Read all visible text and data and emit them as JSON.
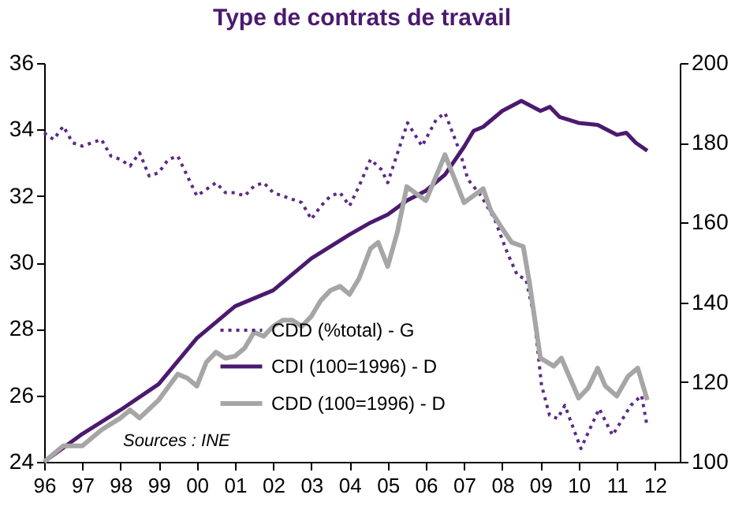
{
  "chart_data": {
    "type": "line",
    "title": "Type de contrats de travail",
    "xlim": [
      1996,
      2012.65
    ],
    "xticks": [
      {
        "value": 1996,
        "label": "96"
      },
      {
        "value": 1997,
        "label": "97"
      },
      {
        "value": 1998,
        "label": "98"
      },
      {
        "value": 1999,
        "label": "99"
      },
      {
        "value": 2000,
        "label": "00"
      },
      {
        "value": 2001,
        "label": "01"
      },
      {
        "value": 2002,
        "label": "02"
      },
      {
        "value": 2003,
        "label": "03"
      },
      {
        "value": 2004,
        "label": "04"
      },
      {
        "value": 2005,
        "label": "05"
      },
      {
        "value": 2006,
        "label": "06"
      },
      {
        "value": 2007,
        "label": "07"
      },
      {
        "value": 2008,
        "label": "08"
      },
      {
        "value": 2009,
        "label": "09"
      },
      {
        "value": 2010,
        "label": "10"
      },
      {
        "value": 2011,
        "label": "11"
      },
      {
        "value": 2012,
        "label": "12"
      }
    ],
    "ylim": [
      24,
      36
    ],
    "yticks": [
      24,
      26,
      28,
      30,
      32,
      34,
      36
    ],
    "y2lim": [
      100,
      200
    ],
    "y2ticks": [
      100,
      120,
      140,
      160,
      180,
      200
    ],
    "grid": false,
    "legend": "bottom",
    "marker": "none",
    "annotations": [
      "Sources : INE"
    ],
    "series": [
      {
        "name": "CDD (%total) - G",
        "color": "#5b2a86",
        "line_style": "dotted",
        "x": [
          1996,
          1996.25,
          1996.5,
          1996.75,
          1997,
          1997.25,
          1997.5,
          1997.75,
          1998,
          1998.25,
          1998.5,
          1998.75,
          1999,
          1999.25,
          1999.5,
          1999.75,
          2000,
          2000.25,
          2000.5,
          2000.75,
          2001,
          2001.25,
          2001.5,
          2001.75,
          2002,
          2002.25,
          2002.5,
          2002.75,
          2003,
          2003.25,
          2003.5,
          2003.75,
          2004,
          2004.25,
          2004.55,
          2004.83,
          2005,
          2005.52,
          2005.9,
          2006.27,
          2006.5,
          2006.9,
          2007.1,
          2007.45,
          2007.8,
          2008.13,
          2008.4,
          2008.62,
          2008.83,
          2009.03,
          2009.24,
          2009.45,
          2009.64,
          2010.06,
          2010.54,
          2010.89,
          2011.37,
          2011.65,
          2011.79
        ],
        "values": [
          33.9,
          33.7,
          34.1,
          33.6,
          33.5,
          33.6,
          33.7,
          33.2,
          33.1,
          32.9,
          33.3,
          32.6,
          32.7,
          33.1,
          33.2,
          32.6,
          32.0,
          32.2,
          32.4,
          32.1,
          32.1,
          32.0,
          32.3,
          32.4,
          32.1,
          32.0,
          31.9,
          31.8,
          31.3,
          31.7,
          32.0,
          32.1,
          31.7,
          32.3,
          33.1,
          32.8,
          32.4,
          34.2,
          33.5,
          34.3,
          34.5,
          33.3,
          32.5,
          32.0,
          31.3,
          30.3,
          29.6,
          29.5,
          28.4,
          26.3,
          25.4,
          25.3,
          25.7,
          24.4,
          25.6,
          24.8,
          25.7,
          26.0,
          25.1
        ]
      },
      {
        "name": "CDI (100=1996) - D",
        "color": "#4b1a6e",
        "line_style": "solid",
        "axis": "y2",
        "x": [
          1996,
          1997,
          1998,
          1999,
          2000,
          2001,
          2002,
          2003,
          2004,
          2004.55,
          2005,
          2005.5,
          2006,
          2006.5,
          2007,
          2007.25,
          2007.5,
          2008,
          2008.5,
          2009,
          2009.25,
          2009.5,
          2010,
          2010.5,
          2011,
          2011.25,
          2011.5,
          2011.8
        ],
        "values": [
          100,
          107,
          113,
          119.5,
          131,
          139,
          143,
          151,
          157,
          160,
          162,
          165.5,
          168,
          172,
          179,
          183,
          184,
          188,
          190.5,
          188,
          189,
          186.5,
          185,
          184.5,
          182,
          182.5,
          180,
          178
        ]
      },
      {
        "name": "CDD (100=1996) - D",
        "color": "#a6a6a6",
        "line_style": "solid",
        "axis": "y2",
        "x": [
          1996,
          1996.5,
          1997,
          1997.5,
          1998,
          1998.25,
          1998.5,
          1999,
          1999.5,
          1999.75,
          2000,
          2000.25,
          2000.5,
          2000.75,
          2001,
          2001.25,
          2001.5,
          2001.75,
          2002,
          2002.25,
          2002.5,
          2002.75,
          2003,
          2003.25,
          2003.5,
          2003.75,
          2004,
          2004.25,
          2004.55,
          2004.75,
          2005,
          2005.25,
          2005.5,
          2006,
          2006.5,
          2006.75,
          2007,
          2007.5,
          2007.7,
          2008,
          2008.25,
          2008.55,
          2008.72,
          2009,
          2009.35,
          2009.55,
          2010,
          2010.25,
          2010.5,
          2010.7,
          2011,
          2011.3,
          2011.55,
          2011.8
        ],
        "values": [
          100,
          104,
          104,
          108,
          111,
          113,
          111,
          115.5,
          122,
          121,
          119,
          125,
          127.5,
          126,
          126.5,
          128.5,
          132.5,
          131.5,
          134,
          135.5,
          135.5,
          134,
          136.5,
          140.5,
          143,
          144,
          142,
          146,
          153.5,
          155,
          149,
          157.5,
          169,
          165.5,
          177,
          171,
          165,
          168.5,
          163,
          158.5,
          155,
          154,
          144.5,
          126,
          124,
          126,
          116,
          118.5,
          123.5,
          119,
          116.5,
          121.5,
          123.5,
          115.5
        ]
      }
    ]
  }
}
